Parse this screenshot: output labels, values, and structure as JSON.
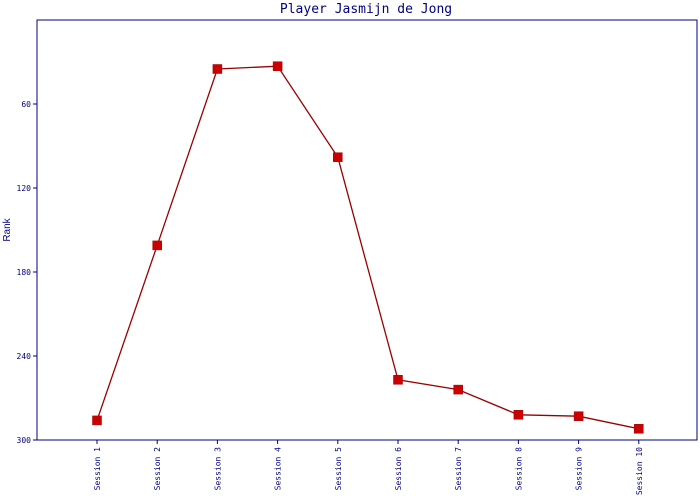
{
  "chart_data": {
    "type": "line",
    "title": "Player Jasmijn de Jong",
    "xlabel": "",
    "ylabel": "Rank",
    "categories": [
      "Session 1",
      "Session 2",
      "Session 3",
      "Session 4",
      "Session 5",
      "Session 6",
      "Session 7",
      "Session 8",
      "Session 9",
      "Session 10"
    ],
    "series": [
      {
        "values": [
          286,
          161,
          35,
          33,
          98,
          257,
          264,
          282,
          283,
          292
        ]
      }
    ],
    "yticks": [
      60,
      120,
      180,
      240,
      300
    ],
    "yticks_labels": [
      "60",
      "120",
      "180",
      "240",
      "300"
    ],
    "ylim": [
      0,
      300
    ],
    "y_inverted": true,
    "grid": false,
    "legend": "none",
    "colors": {
      "line": "#990000",
      "marker": "#cc0000",
      "axis": "#000080",
      "text": "#000080"
    }
  }
}
